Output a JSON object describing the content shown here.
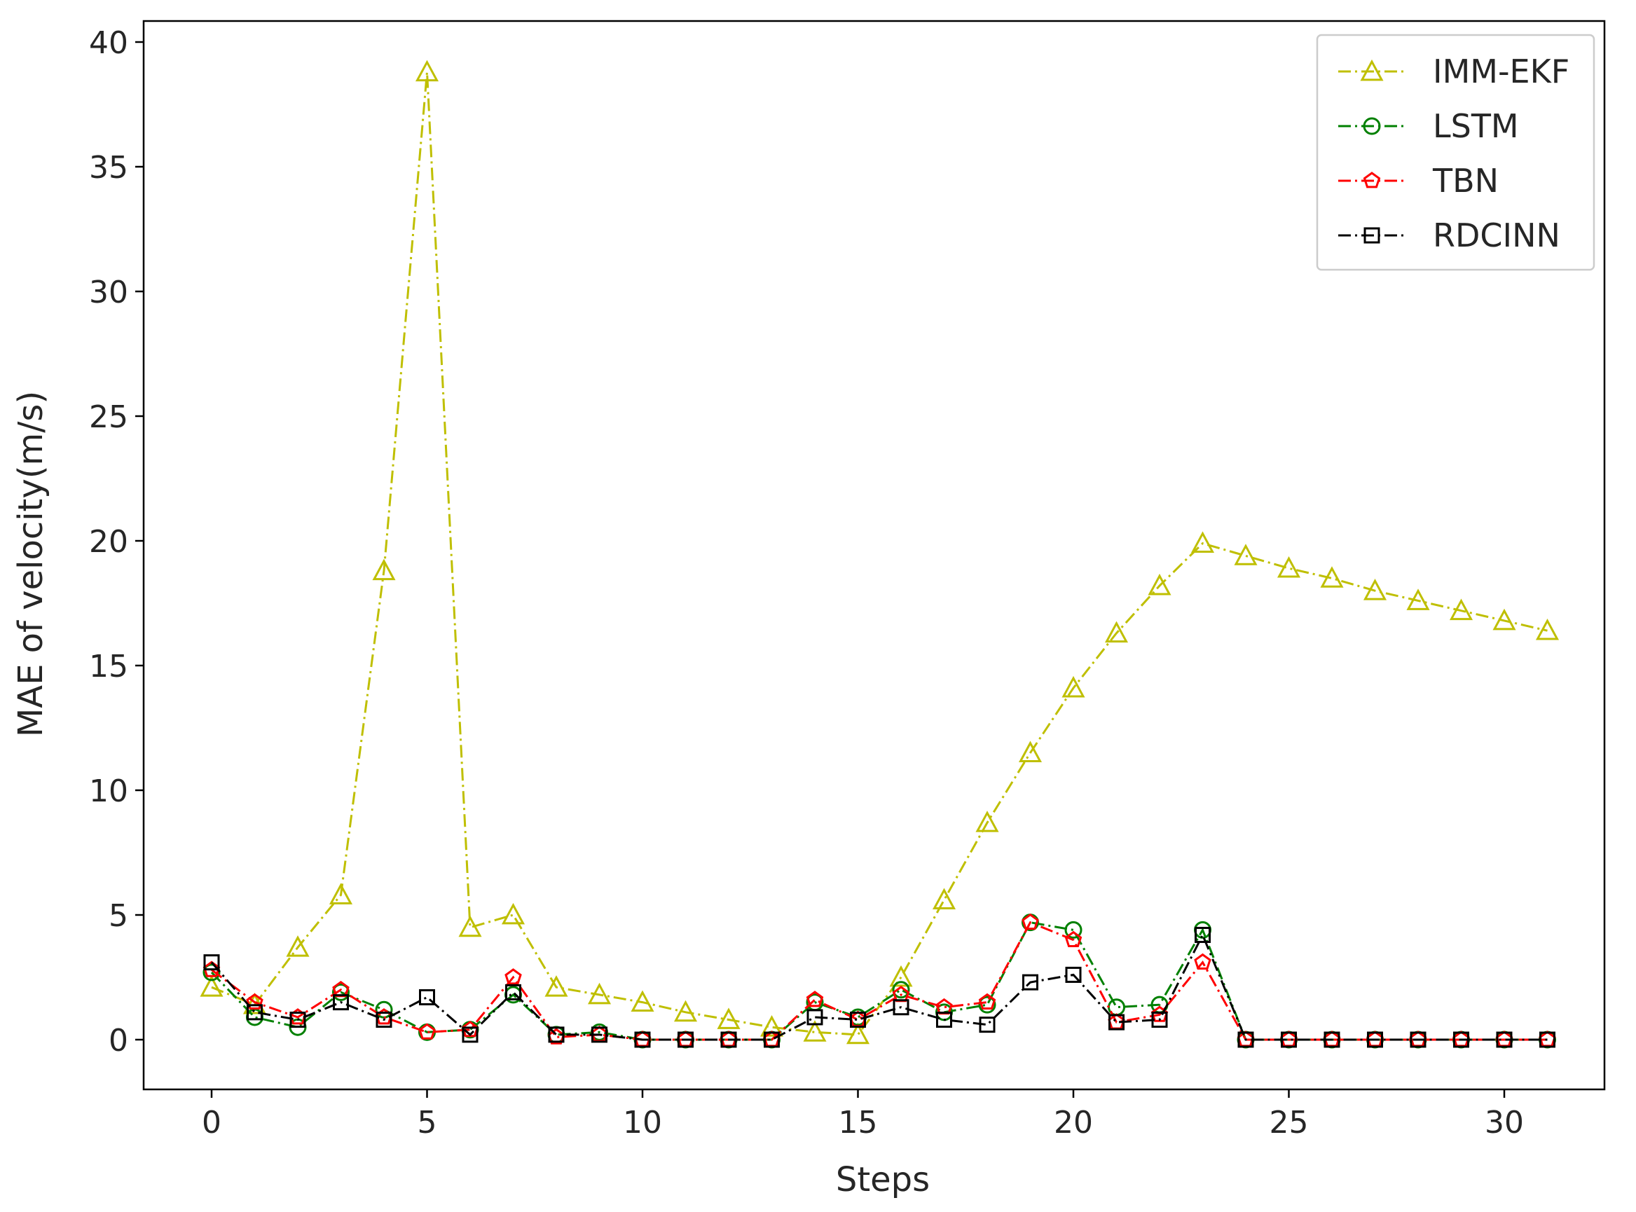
{
  "chart_data": {
    "type": "line",
    "title": "",
    "xlabel": "Steps",
    "ylabel": "MAE of velocity(m/s)",
    "xlim": [
      -1.5,
      32.2
    ],
    "ylim": [
      -2,
      41
    ],
    "xticks": [
      0,
      5,
      10,
      15,
      20,
      25,
      30
    ],
    "yticks": [
      0,
      5,
      10,
      15,
      20,
      25,
      30,
      35,
      40
    ],
    "grid": false,
    "legend_position": "top-right",
    "x": [
      0,
      1,
      2,
      3,
      4,
      5,
      6,
      7,
      8,
      9,
      10,
      11,
      12,
      13,
      14,
      15,
      16,
      17,
      18,
      19,
      20,
      21,
      22,
      23,
      24,
      25,
      26,
      27,
      28,
      29,
      30,
      31
    ],
    "series": [
      {
        "name": "IMM-EKF",
        "color": "#bfbf00",
        "marker": "triangle",
        "values": [
          2.1,
          1.4,
          3.7,
          5.8,
          18.8,
          38.8,
          4.5,
          5.0,
          2.1,
          1.8,
          1.5,
          1.1,
          0.8,
          0.5,
          0.3,
          0.2,
          2.5,
          5.6,
          8.7,
          11.5,
          14.1,
          16.3,
          18.2,
          19.9,
          19.4,
          18.9,
          18.5,
          18.0,
          17.6,
          17.2,
          16.8,
          16.4
        ]
      },
      {
        "name": "LSTM",
        "color": "#008000",
        "marker": "circle",
        "values": [
          2.7,
          0.9,
          0.5,
          1.9,
          1.2,
          0.3,
          0.4,
          1.8,
          0.2,
          0.3,
          0.0,
          0.0,
          0.0,
          0.0,
          1.5,
          0.9,
          2.0,
          1.1,
          1.4,
          4.7,
          4.4,
          1.3,
          1.4,
          4.4,
          0.0,
          0.0,
          0.0,
          0.0,
          0.0,
          0.0,
          0.0,
          0.0
        ]
      },
      {
        "name": "TBN",
        "color": "#ff0000",
        "marker": "pentagon",
        "values": [
          2.8,
          1.5,
          0.9,
          2.0,
          0.9,
          0.3,
          0.4,
          2.5,
          0.1,
          0.2,
          0.0,
          0.0,
          0.0,
          0.0,
          1.6,
          0.8,
          1.8,
          1.3,
          1.5,
          4.7,
          4.0,
          0.7,
          1.0,
          3.1,
          0.0,
          0.0,
          0.0,
          0.0,
          0.0,
          0.0,
          0.0,
          0.0
        ]
      },
      {
        "name": "RDCINN",
        "color": "#000000",
        "marker": "square",
        "values": [
          3.1,
          1.1,
          0.8,
          1.5,
          0.8,
          1.7,
          0.2,
          1.9,
          0.2,
          0.2,
          0.0,
          0.0,
          0.0,
          0.0,
          0.9,
          0.8,
          1.3,
          0.8,
          0.6,
          2.3,
          2.6,
          0.7,
          0.8,
          4.2,
          0.0,
          0.0,
          0.0,
          0.0,
          0.0,
          0.0,
          0.0,
          0.0
        ]
      }
    ]
  }
}
